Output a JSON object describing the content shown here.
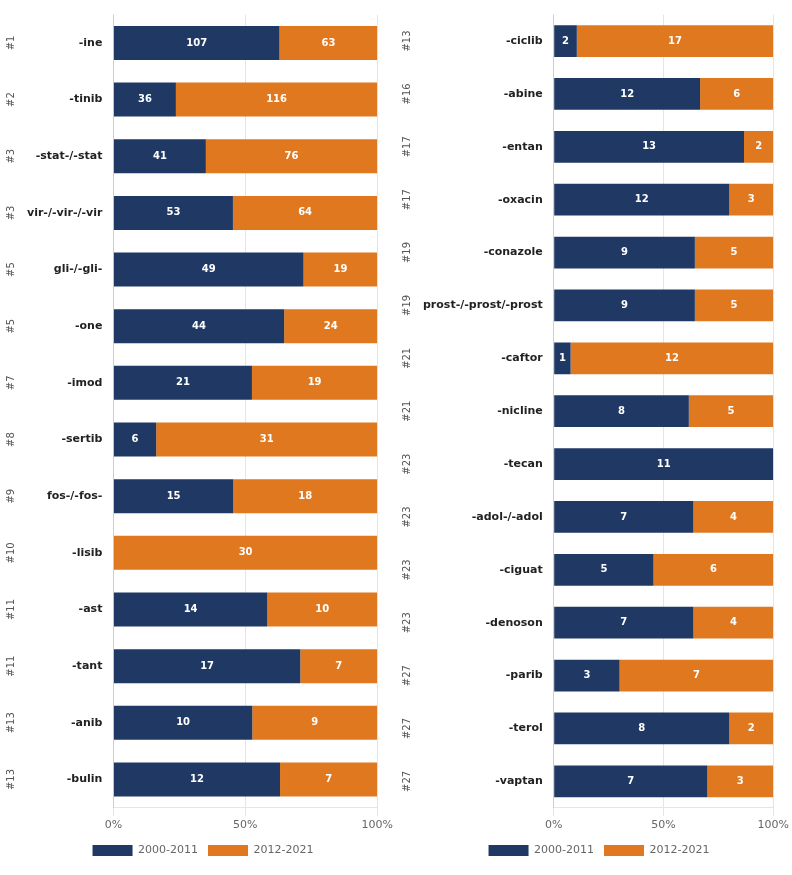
{
  "chart_data": [
    {
      "type": "bar",
      "orientation": "horizontal",
      "stacked": true,
      "grid": true,
      "legend": "bottom",
      "categories": [
        "-ine",
        "-tinib",
        "-stat-/-stat",
        "vir-/-vir-/-vir",
        "gli-/-gli-",
        "-one",
        "-imod",
        "-sertib",
        "fos-/-fos-",
        "-lisib",
        "-ast",
        "-tant",
        "-anib",
        "-bulin"
      ],
      "ranks": [
        "#1",
        "#2",
        "#3",
        "#3",
        "#5",
        "#5",
        "#7",
        "#8",
        "#9",
        "#10",
        "#11",
        "#11",
        "#13",
        "#13"
      ],
      "series": [
        {
          "name": "2000-2011",
          "color": "#1f3864",
          "values": [
            62.941,
            23.684,
            35.043,
            45.299,
            72.059,
            64.706,
            52.5,
            16.216,
            45.455,
            0,
            58.333,
            70.833,
            52.632,
            63.158
          ],
          "counts": [
            107,
            36,
            41,
            53,
            49,
            44,
            21,
            6,
            15,
            0,
            14,
            17,
            10,
            12
          ]
        },
        {
          "name": "2012-2021",
          "color": "#e07820",
          "values": [
            37.059,
            76.316,
            64.957,
            54.701,
            27.941,
            35.294,
            47.5,
            83.784,
            54.545,
            100,
            41.667,
            29.167,
            47.368,
            36.842
          ],
          "counts": [
            63,
            116,
            76,
            64,
            19,
            24,
            19,
            31,
            18,
            30,
            10,
            7,
            9,
            7
          ]
        }
      ],
      "xlim": [
        0,
        100
      ],
      "xticks": [
        {
          "value": 0,
          "label": "0%"
        },
        {
          "value": 50,
          "label": "50%"
        },
        {
          "value": 100,
          "label": "100%"
        }
      ]
    },
    {
      "type": "bar",
      "orientation": "horizontal",
      "stacked": true,
      "grid": true,
      "legend": "bottom",
      "categories": [
        "-ciclib",
        "-abine",
        "-entan",
        "-oxacin",
        "-conazole",
        "prost-/-prost/-prost",
        "-caftor",
        "-nicline",
        "-tecan",
        "-adol-/-adol",
        "-ciguat",
        "-denoson",
        "-parib",
        "-terol",
        "-vaptan"
      ],
      "ranks": [
        "#13",
        "#16",
        "#17",
        "#17",
        "#19",
        "#19",
        "#21",
        "#21",
        "#23",
        "#23",
        "#23",
        "#23",
        "#27",
        "#27",
        "#27"
      ],
      "series": [
        {
          "name": "2000-2011",
          "color": "#1f3864",
          "values": [
            10.526,
            66.667,
            86.667,
            80,
            64.286,
            64.286,
            7.692,
            61.538,
            100,
            63.636,
            45.455,
            63.636,
            30,
            80,
            70
          ],
          "counts": [
            2,
            12,
            13,
            12,
            9,
            9,
            1,
            8,
            11,
            7,
            5,
            7,
            3,
            8,
            7
          ]
        },
        {
          "name": "2012-2021",
          "color": "#e07820",
          "values": [
            89.474,
            33.333,
            13.333,
            20,
            35.714,
            35.714,
            92.308,
            38.462,
            0,
            36.364,
            54.545,
            36.364,
            70,
            20,
            30
          ],
          "counts": [
            17,
            6,
            2,
            3,
            5,
            5,
            12,
            5,
            0,
            4,
            6,
            4,
            7,
            2,
            3
          ]
        }
      ],
      "xlim": [
        0,
        100
      ],
      "xticks": [
        {
          "value": 0,
          "label": "0%"
        },
        {
          "value": 50,
          "label": "50%"
        },
        {
          "value": 100,
          "label": "100%"
        }
      ]
    }
  ]
}
